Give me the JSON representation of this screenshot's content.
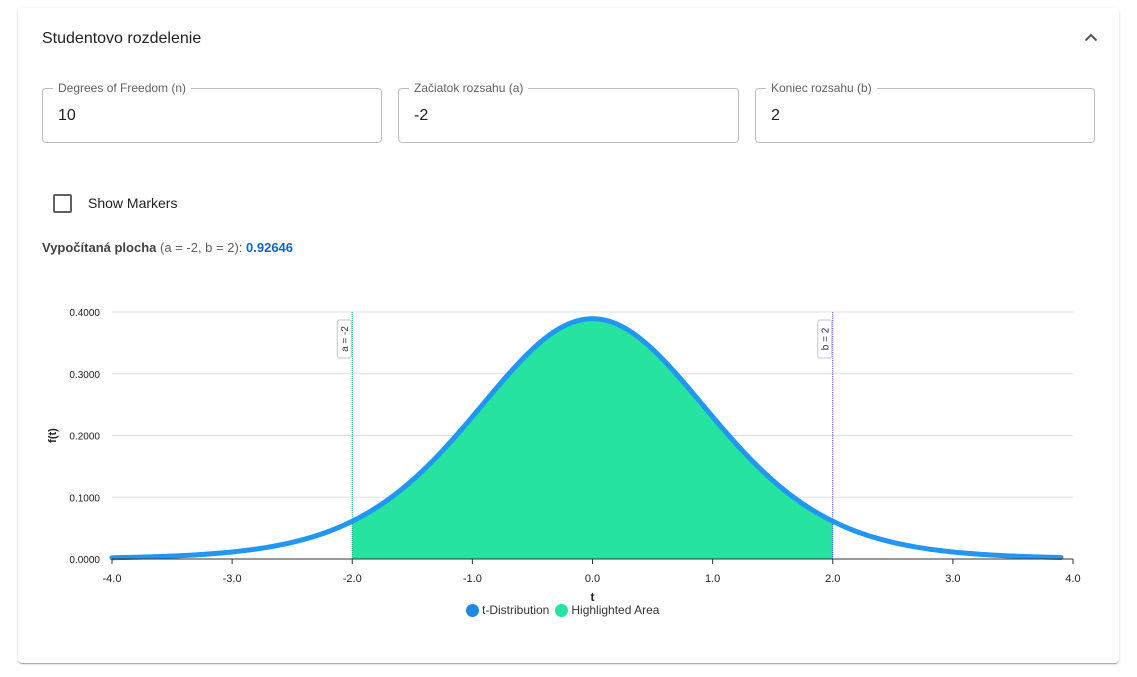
{
  "panel": {
    "title": "Studentovo rozdelenie",
    "collapse_icon": "chevron-up-icon"
  },
  "inputs": {
    "dof": {
      "label": "Degrees of Freedom (n)",
      "value": "10"
    },
    "start": {
      "label": "Začiatok rozsahu (a)",
      "value": "-2"
    },
    "end": {
      "label": "Koniec rozsahu (b)",
      "value": "2"
    }
  },
  "show_markers": {
    "label": "Show Markers",
    "checked": false
  },
  "result": {
    "label": "Vypočítaná plocha",
    "params": "(a = -2, b = 2):",
    "value": "0.92646",
    "value_color": "#1565c0"
  },
  "chart_data": {
    "type": "area",
    "degrees_of_freedom": 10,
    "xlabel": "t",
    "ylabel": "f(t)",
    "xlim": [
      -4,
      4
    ],
    "ylim": [
      0,
      0.4
    ],
    "xticks": [
      "-4.0",
      "-3.0",
      "-2.0",
      "-1.0",
      "0.0",
      "1.0",
      "2.0",
      "3.0",
      "4.0"
    ],
    "yticks": [
      "0.0000",
      "0.1000",
      "0.2000",
      "0.3000",
      "0.4000"
    ],
    "grid": true,
    "legend_position": "bottom-center",
    "series": [
      {
        "name": "t-Distribution",
        "color": "#2196f3",
        "x": [
          -4.0,
          -3.5,
          -3.0,
          -2.5,
          -2.0,
          -1.5,
          -1.0,
          -0.5,
          0.0,
          0.5,
          1.0,
          1.5,
          2.0,
          2.5,
          3.0,
          3.5,
          3.9
        ],
        "values": [
          0.002,
          0.0043,
          0.0114,
          0.0269,
          0.0611,
          0.1274,
          0.2304,
          0.3402,
          0.3891,
          0.3402,
          0.2304,
          0.1274,
          0.0611,
          0.0269,
          0.0114,
          0.0043,
          0.0025
        ]
      },
      {
        "name": "Highlighted Area",
        "color": "#26e3a0",
        "range": [
          -2,
          2
        ]
      }
    ],
    "annotations": [
      {
        "label": "a = -2",
        "x": -2,
        "color": "#26a69a"
      },
      {
        "label": "b = 2",
        "x": 2,
        "color": "#3949ab"
      }
    ]
  }
}
